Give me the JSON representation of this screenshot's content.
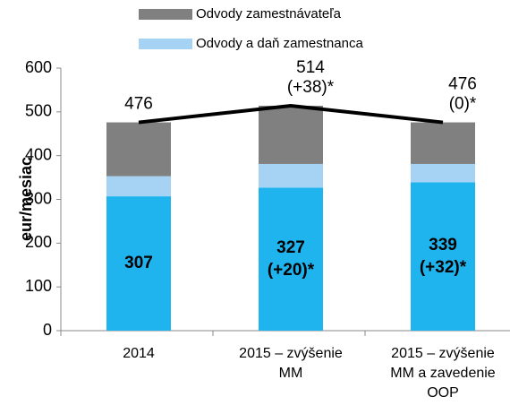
{
  "chart_data": {
    "type": "stacked_bar_line",
    "y_label": "eur/mesiac",
    "categories": [
      [
        "2014"
      ],
      [
        "2015 – zvýšenie",
        "MM"
      ],
      [
        "2015 – zvýšenie",
        "MM a zavedenie",
        "OOP"
      ]
    ],
    "ylim": [
      0,
      600
    ],
    "yticks": [
      0,
      100,
      200,
      300,
      400,
      500,
      600
    ],
    "series": [
      {
        "color": "#1fb4ee",
        "values": [
          307,
          327,
          339
        ],
        "change_labels": [
          null,
          "(+20)*",
          "(+32)*"
        ]
      },
      {
        "name": "Odvody a daň zamestnanca",
        "color": "#a6d3f4",
        "values": [
          46,
          54,
          42
        ]
      },
      {
        "name": "Odvody zamestnávateľa",
        "color": "#808080",
        "values": [
          123,
          133,
          95
        ]
      }
    ],
    "line": {
      "color": "#000000",
      "values": [
        476,
        514,
        476
      ],
      "change_labels": [
        null,
        "(+38)*",
        "(0)*"
      ]
    }
  }
}
